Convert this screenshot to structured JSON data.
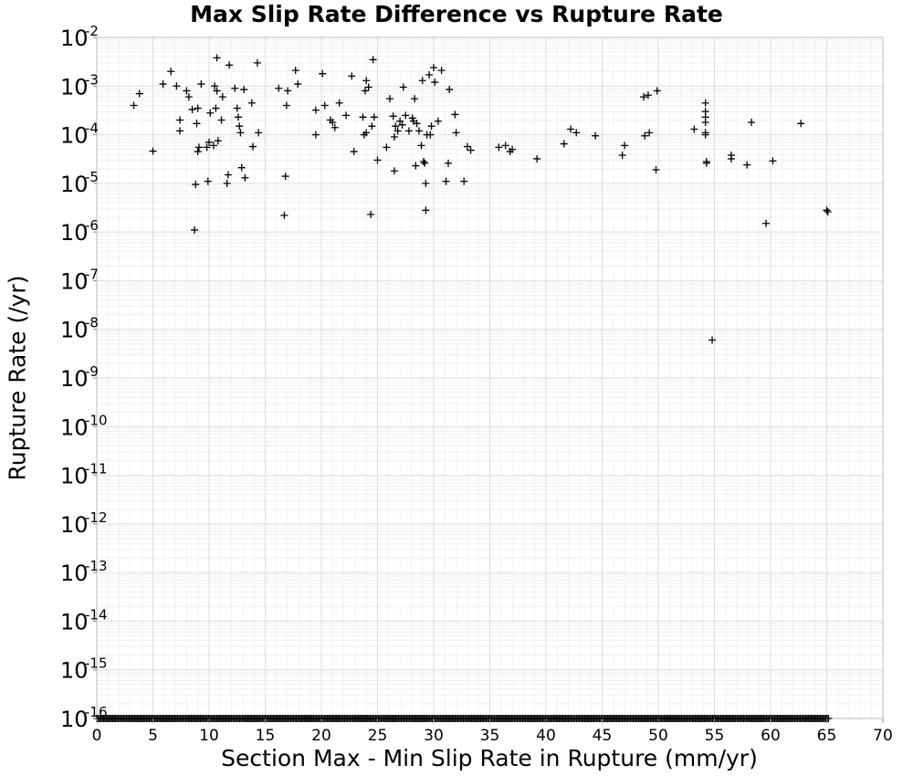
{
  "chart_data": {
    "type": "scatter",
    "title": "Max Slip Rate Difference vs Rupture Rate",
    "xlabel": "Section Max - Min Slip Rate in Rupture (mm/yr)",
    "ylabel": "Rupture Rate (/yr)",
    "xlim": [
      0,
      70
    ],
    "ylim": [
      1e-16,
      0.01
    ],
    "y_scale": "log",
    "grid": true,
    "legend": "none",
    "marker": "plus",
    "marker_color": "#000000",
    "x_ticks": [
      "0",
      "5",
      "10",
      "15",
      "20",
      "25",
      "30",
      "35",
      "40",
      "45",
      "50",
      "55",
      "60",
      "65",
      "70"
    ],
    "y_tick_exponents": [
      "-2",
      "-3",
      "-4",
      "-5",
      "-6",
      "-7",
      "-8",
      "-9",
      "-10",
      "-11",
      "-12",
      "-13",
      "-14",
      "-15",
      "-16"
    ],
    "y_tick_base": "10",
    "points": [
      [
        3.3,
        0.0004
      ],
      [
        3.8,
        0.0007
      ],
      [
        5.0,
        4.6e-05
      ],
      [
        5.9,
        0.0011
      ],
      [
        6.6,
        0.002
      ],
      [
        7.1,
        0.001
      ],
      [
        7.4,
        0.0002
      ],
      [
        7.4,
        0.00012
      ],
      [
        8.0,
        0.0008
      ],
      [
        8.2,
        0.0006
      ],
      [
        8.5,
        0.00033
      ],
      [
        8.7,
        1.1e-06
      ],
      [
        8.8,
        9.5e-06
      ],
      [
        8.9,
        0.00017
      ],
      [
        9.0,
        0.00035
      ],
      [
        9.0,
        4.5e-05
      ],
      [
        9.1,
        5.5e-05
      ],
      [
        9.3,
        0.0011
      ],
      [
        9.8,
        5.5e-05
      ],
      [
        9.9,
        1.1e-05
      ],
      [
        10.0,
        7e-05
      ],
      [
        10.1,
        0.00028
      ],
      [
        10.4,
        6e-05
      ],
      [
        10.5,
        0.001
      ],
      [
        10.6,
        0.00035
      ],
      [
        10.7,
        0.0038
      ],
      [
        10.7,
        0.0008
      ],
      [
        10.8,
        7.5e-05
      ],
      [
        11.1,
        0.0002
      ],
      [
        11.2,
        0.0006
      ],
      [
        11.6,
        1e-05
      ],
      [
        11.7,
        1.5e-05
      ],
      [
        11.8,
        0.0027
      ],
      [
        12.3,
        0.0009
      ],
      [
        12.5,
        0.00035
      ],
      [
        12.6,
        0.00023
      ],
      [
        12.7,
        0.00015
      ],
      [
        12.8,
        0.00011
      ],
      [
        12.9,
        2.1e-05
      ],
      [
        13.1,
        0.00085
      ],
      [
        13.2,
        1.3e-05
      ],
      [
        13.8,
        0.00045
      ],
      [
        13.9,
        5.7e-05
      ],
      [
        14.3,
        0.003
      ],
      [
        14.4,
        0.00011
      ],
      [
        16.2,
        0.0009
      ],
      [
        16.7,
        2.2e-06
      ],
      [
        16.8,
        1.4e-05
      ],
      [
        16.9,
        0.0004
      ],
      [
        17.0,
        0.0008
      ],
      [
        17.7,
        0.0021
      ],
      [
        17.9,
        0.0011
      ],
      [
        19.5,
        0.00032
      ],
      [
        19.5,
        0.0001
      ],
      [
        20.1,
        0.0018
      ],
      [
        20.3,
        0.0004
      ],
      [
        20.8,
        0.0002
      ],
      [
        21.0,
        0.00018
      ],
      [
        21.2,
        0.00014
      ],
      [
        21.6,
        0.00045
      ],
      [
        22.2,
        0.00025
      ],
      [
        22.7,
        0.0016
      ],
      [
        22.9,
        4.5e-05
      ],
      [
        23.7,
        0.00023
      ],
      [
        23.8,
        0.0001
      ],
      [
        23.9,
        0.0008
      ],
      [
        24.0,
        0.0013
      ],
      [
        24.0,
        0.00011
      ],
      [
        24.2,
        0.00095
      ],
      [
        24.4,
        2.3e-06
      ],
      [
        24.5,
        0.00015
      ],
      [
        24.6,
        0.0035
      ],
      [
        24.7,
        0.00023
      ],
      [
        25.0,
        3e-05
      ],
      [
        25.8,
        5.5e-05
      ],
      [
        26.1,
        0.00055
      ],
      [
        26.4,
        0.00024
      ],
      [
        26.5,
        1.8e-05
      ],
      [
        26.5,
        9e-05
      ],
      [
        26.6,
        0.00015
      ],
      [
        26.8,
        0.00012
      ],
      [
        27.0,
        0.00019
      ],
      [
        27.2,
        0.00016
      ],
      [
        27.3,
        0.00095
      ],
      [
        27.5,
        0.00025
      ],
      [
        27.8,
        0.00012
      ],
      [
        28.1,
        0.00022
      ],
      [
        28.2,
        0.00019
      ],
      [
        28.3,
        0.00055
      ],
      [
        28.4,
        2.3e-05
      ],
      [
        28.5,
        0.00017
      ],
      [
        28.7,
        0.00012
      ],
      [
        28.9,
        6e-05
      ],
      [
        29.0,
        0.0013
      ],
      [
        29.1,
        2.8e-05
      ],
      [
        29.2,
        2.6e-05
      ],
      [
        29.3,
        1e-05
      ],
      [
        29.3,
        2.8e-06
      ],
      [
        29.4,
        0.0001
      ],
      [
        29.6,
        0.0017
      ],
      [
        29.7,
        0.0001
      ],
      [
        29.8,
        0.00015
      ],
      [
        30.0,
        0.0024
      ],
      [
        30.1,
        0.0012
      ],
      [
        30.4,
        0.00019
      ],
      [
        30.7,
        0.0021
      ],
      [
        31.1,
        1.1e-05
      ],
      [
        31.3,
        2.6e-05
      ],
      [
        31.4,
        0.00085
      ],
      [
        31.9,
        0.00026
      ],
      [
        32.0,
        0.00011
      ],
      [
        32.7,
        1.1e-05
      ],
      [
        33.0,
        5.7e-05
      ],
      [
        33.3,
        4.8e-05
      ],
      [
        35.8,
        5.5e-05
      ],
      [
        36.4,
        6e-05
      ],
      [
        36.8,
        4.5e-05
      ],
      [
        37.0,
        5e-05
      ],
      [
        39.2,
        3.2e-05
      ],
      [
        41.6,
        6.5e-05
      ],
      [
        42.2,
        0.00013
      ],
      [
        42.7,
        0.00011
      ],
      [
        44.4,
        9.5e-05
      ],
      [
        46.8,
        3.8e-05
      ],
      [
        47.0,
        6e-05
      ],
      [
        48.7,
        0.0006
      ],
      [
        48.8,
        9.5e-05
      ],
      [
        49.1,
        0.00065
      ],
      [
        49.2,
        0.00011
      ],
      [
        49.8,
        1.9e-05
      ],
      [
        49.9,
        0.0008
      ],
      [
        53.2,
        0.00013
      ],
      [
        54.2,
        0.00045
      ],
      [
        54.2,
        0.0003
      ],
      [
        54.2,
        0.00023
      ],
      [
        54.2,
        0.00018
      ],
      [
        54.2,
        0.00011
      ],
      [
        54.2,
        0.0001
      ],
      [
        54.3,
        2.8e-05
      ],
      [
        54.3,
        2.6e-05
      ],
      [
        54.8,
        6e-09
      ],
      [
        56.5,
        3.8e-05
      ],
      [
        56.5,
        3.2e-05
      ],
      [
        57.9,
        2.4e-05
      ],
      [
        58.3,
        0.00018
      ],
      [
        59.6,
        1.5e-06
      ],
      [
        60.2,
        2.9e-05
      ],
      [
        62.7,
        0.00017
      ],
      [
        65.0,
        2.8e-06
      ],
      [
        65.1,
        2.6e-06
      ]
    ],
    "floor_points_y": 1e-16,
    "floor_points_x": [
      0.0,
      65.2
    ]
  }
}
